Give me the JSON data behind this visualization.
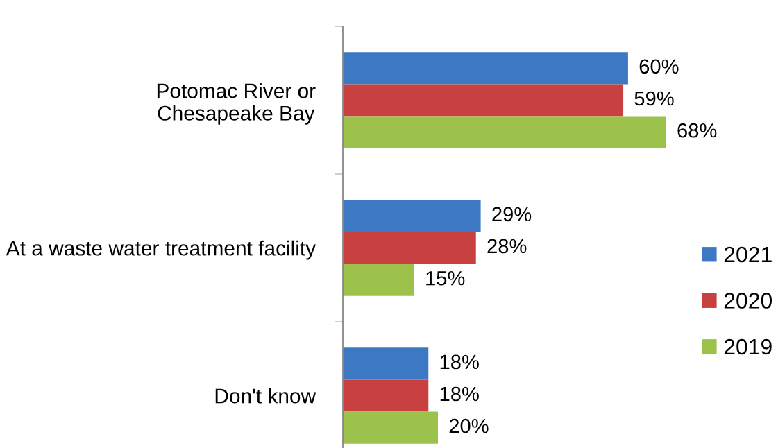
{
  "chart_data": {
    "type": "bar",
    "orientation": "horizontal",
    "categories": [
      "Potomac River or\nChesapeake Bay",
      "At a waste water treatment facility",
      "Don't know"
    ],
    "series": [
      {
        "name": "2021",
        "color": "#3d78c4",
        "values": [
          60,
          29,
          18
        ],
        "value_labels": [
          "60%",
          "29%",
          "18%"
        ]
      },
      {
        "name": "2020",
        "color": "#c8403f",
        "values": [
          59,
          28,
          18
        ],
        "value_labels": [
          "59%",
          "28%",
          "18%"
        ]
      },
      {
        "name": "2019",
        "color": "#9cc24c",
        "values": [
          68,
          15,
          20
        ],
        "value_labels": [
          "68%",
          "15%",
          "20%"
        ]
      }
    ],
    "tick_labels": "y",
    "grid": false,
    "legend": "right"
  }
}
